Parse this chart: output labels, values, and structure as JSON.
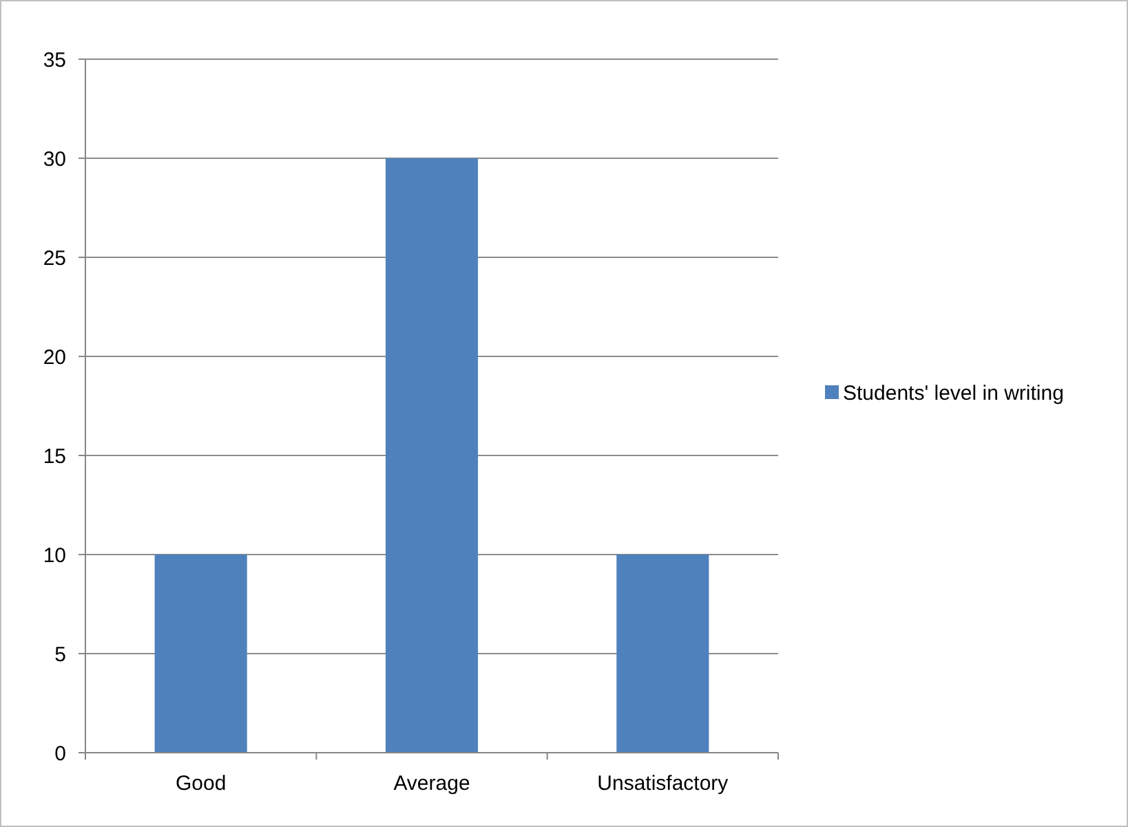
{
  "chart_data": {
    "type": "bar",
    "categories": [
      "Good",
      "Average",
      "Unsatisfactory"
    ],
    "series": [
      {
        "name": "Students' level in writing",
        "color": "#4f81bd",
        "values": [
          10,
          30,
          10
        ]
      }
    ],
    "ylim": [
      0,
      35
    ],
    "yticks": [
      0,
      5,
      10,
      15,
      20,
      25,
      30,
      35
    ],
    "grid": "y",
    "legend": "right"
  }
}
